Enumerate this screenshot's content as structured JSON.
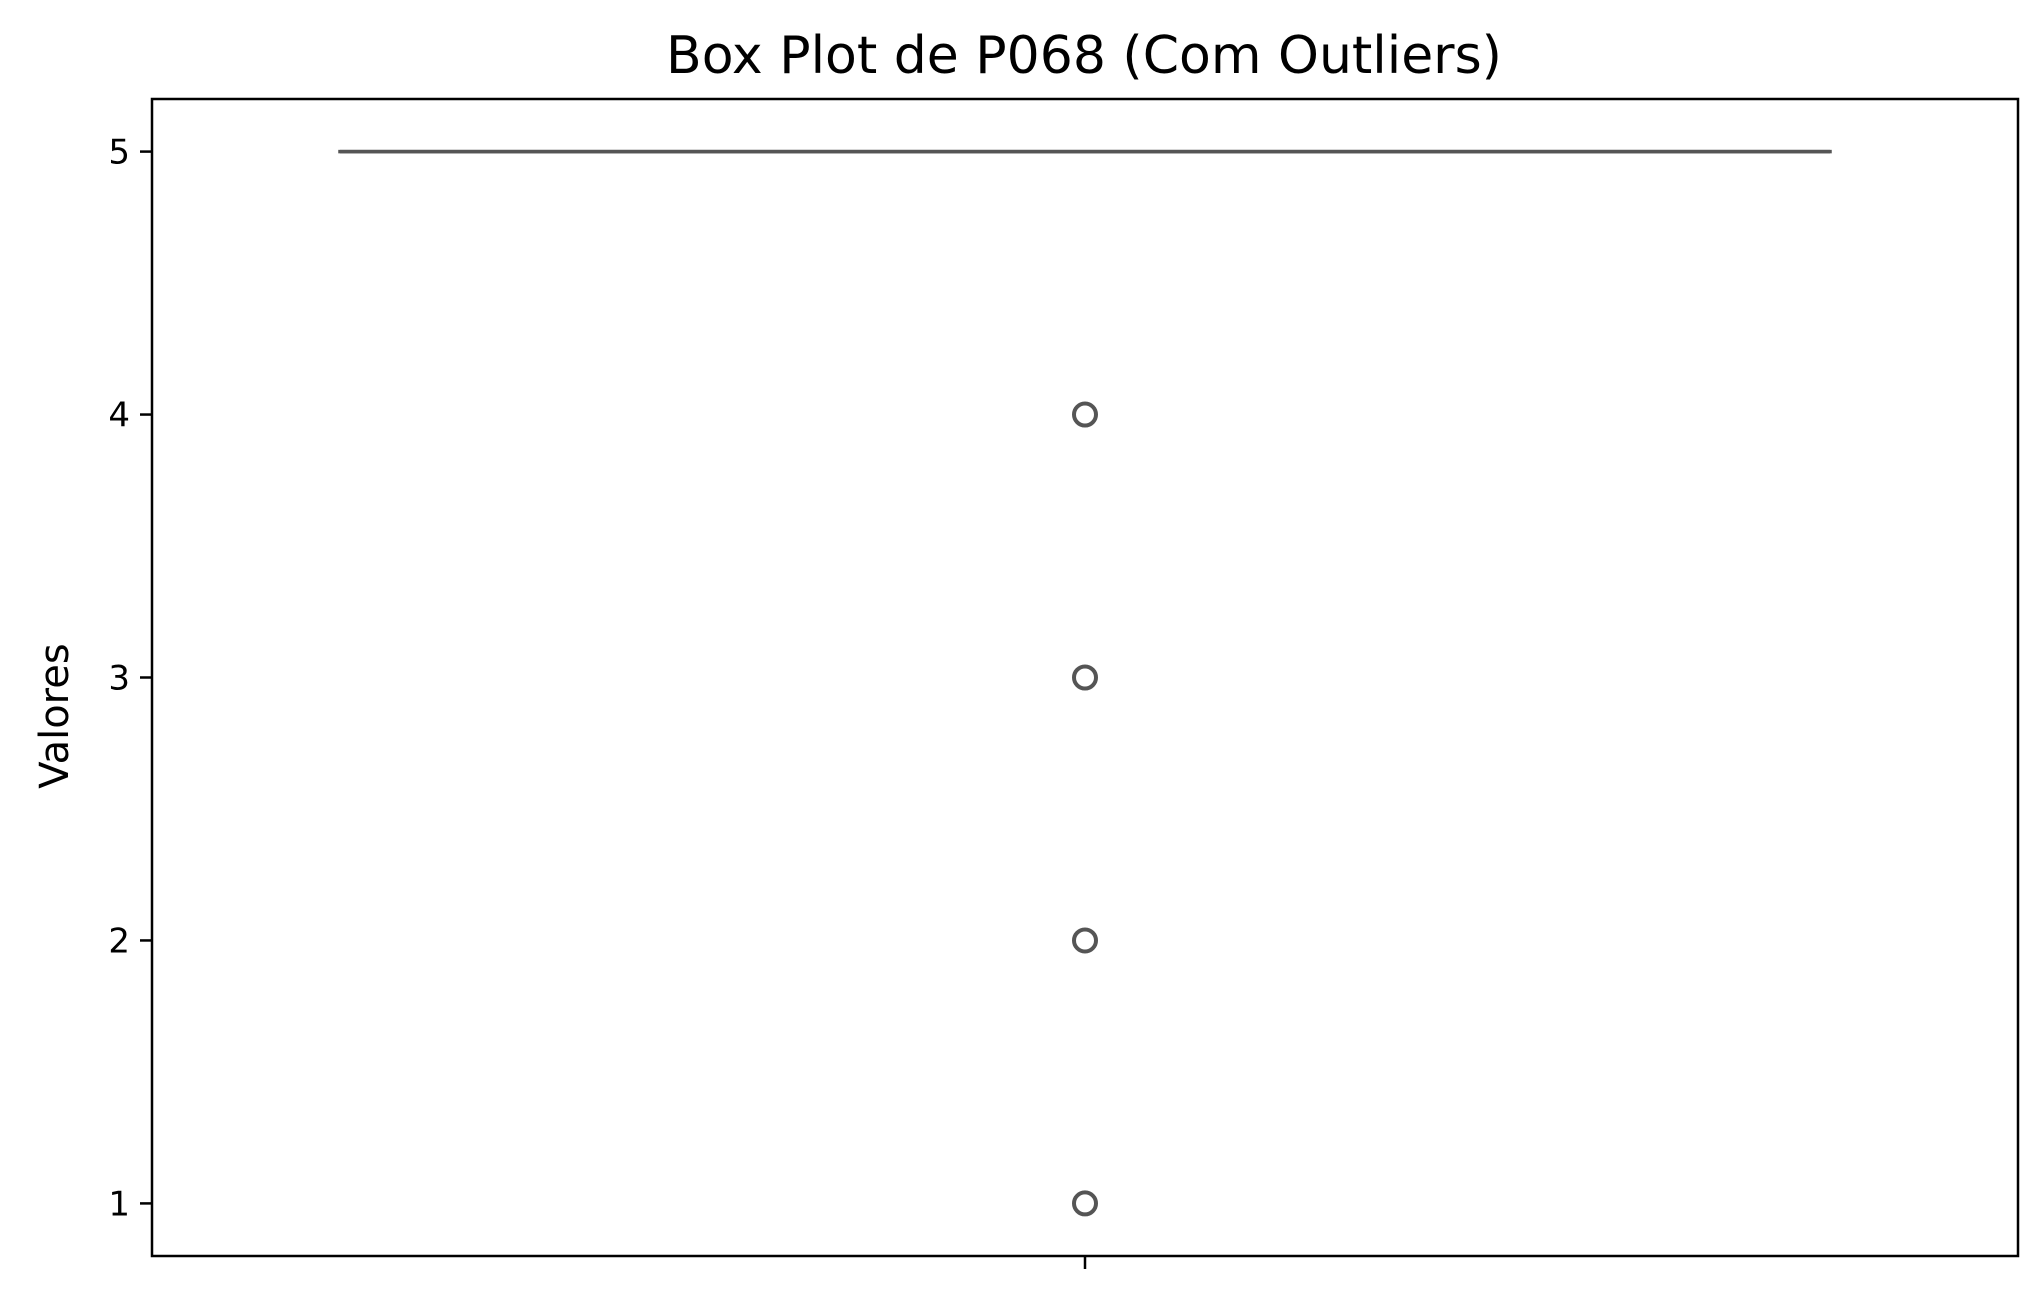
{
  "chart_data": {
    "type": "box",
    "title": "Box Plot de P068 (Com Outliers)",
    "xlabel": "",
    "ylabel": "Valores",
    "ylim": [
      0.8,
      5.2
    ],
    "yticks": [
      "1",
      "2",
      "3",
      "4",
      "5"
    ],
    "grid": false,
    "series": [
      {
        "min": 5,
        "q1": 5,
        "median": 5,
        "q3": 5,
        "max": 5,
        "outliers": [
          4,
          3,
          2,
          1
        ]
      }
    ],
    "colors": {
      "box_line": "#555555",
      "outlier_edge": "#555555",
      "axes": "#000000"
    }
  }
}
